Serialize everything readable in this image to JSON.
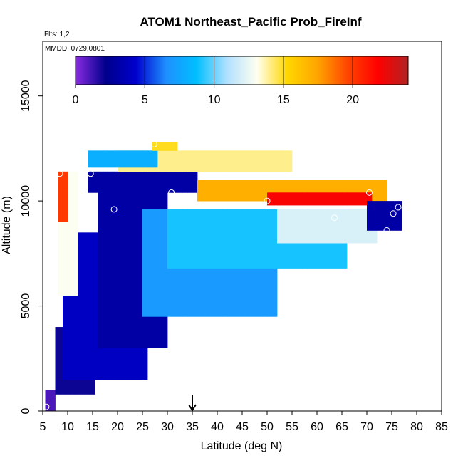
{
  "chart_data": {
    "type": "heatmap",
    "title": "ATOM1 Northeast_Pacific Prob_FireInf",
    "subtitle_flights": "Flts: 1,2",
    "subtitle_dates": "MMDD: 0729,0801",
    "xlabel": "Latitude (deg N)",
    "ylabel": "Altitude (m)",
    "xlim": [
      5,
      85
    ],
    "ylim": [
      0,
      17600
    ],
    "xticks": [
      "5",
      "10",
      "15",
      "20",
      "25",
      "30",
      "35",
      "40",
      "45",
      "50",
      "55",
      "60",
      "65",
      "70",
      "75",
      "80",
      "85"
    ],
    "yticks": [
      "0",
      "5000",
      "10000",
      "15000"
    ],
    "colorbar": {
      "range": [
        0,
        24
      ],
      "ticks": [
        "0",
        "5",
        "10",
        "15",
        "20"
      ],
      "colors": [
        "#8a2be2",
        "#00008b",
        "#0000cd",
        "#1e90ff",
        "#00bfff",
        "#b0e0ff",
        "#fffff0",
        "#ffd700",
        "#ffa500",
        "#ff4500",
        "#ff0000",
        "#b22222"
      ]
    },
    "arrow_marker": {
      "latitude": 35
    },
    "cell_size": {
      "dlat": 1,
      "dalt": 400
    },
    "regions": [
      {
        "lat": [
          5.5,
          7.5
        ],
        "alt": [
          0,
          1000
        ],
        "value": 1
      },
      {
        "lat": [
          7.5,
          15.5
        ],
        "alt": [
          800,
          4000
        ],
        "value": 2
      },
      {
        "lat": [
          9,
          26
        ],
        "alt": [
          1500,
          8500
        ],
        "value": 4
      },
      {
        "lat": [
          16,
          30
        ],
        "alt": [
          3000,
          10500
        ],
        "value": 3
      },
      {
        "lat": [
          25,
          52
        ],
        "alt": [
          4500,
          9600
        ],
        "value": 7
      },
      {
        "lat": [
          30,
          66
        ],
        "alt": [
          6800,
          9600
        ],
        "value": 9
      },
      {
        "lat": [
          52,
          72
        ],
        "alt": [
          8000,
          9600
        ],
        "value": 12
      },
      {
        "lat": [
          8,
          12
        ],
        "alt": [
          5500,
          11400
        ],
        "value": 13
      },
      {
        "lat": [
          8,
          10
        ],
        "alt": [
          9000,
          11400
        ],
        "value": 20
      },
      {
        "lat": [
          14,
          36
        ],
        "alt": [
          10400,
          11400
        ],
        "value": 3
      },
      {
        "lat": [
          36,
          74
        ],
        "alt": [
          10000,
          11000
        ],
        "value": 17
      },
      {
        "lat": [
          50,
          71
        ],
        "alt": [
          9800,
          10400
        ],
        "value": 22
      },
      {
        "lat": [
          20,
          55
        ],
        "alt": [
          11400,
          12400
        ],
        "value": 14
      },
      {
        "lat": [
          14,
          28
        ],
        "alt": [
          11600,
          12400
        ],
        "value": 8
      },
      {
        "lat": [
          27,
          32
        ],
        "alt": [
          12400,
          12800
        ],
        "value": 15
      },
      {
        "lat": [
          70,
          77
        ],
        "alt": [
          8600,
          10000
        ],
        "value": 3
      }
    ],
    "points": [
      {
        "lat": 5.7,
        "alt": 200
      },
      {
        "lat": 8.4,
        "alt": 11300
      },
      {
        "lat": 14.6,
        "alt": 11300
      },
      {
        "lat": 19.3,
        "alt": 9600
      },
      {
        "lat": 27.3,
        "alt": 12700
      },
      {
        "lat": 30.8,
        "alt": 10400
      },
      {
        "lat": 50.0,
        "alt": 10000
      },
      {
        "lat": 63.5,
        "alt": 9200
      },
      {
        "lat": 70.5,
        "alt": 10400
      },
      {
        "lat": 74.0,
        "alt": 8600
      },
      {
        "lat": 75.3,
        "alt": 9400
      },
      {
        "lat": 76.3,
        "alt": 9700
      }
    ]
  }
}
